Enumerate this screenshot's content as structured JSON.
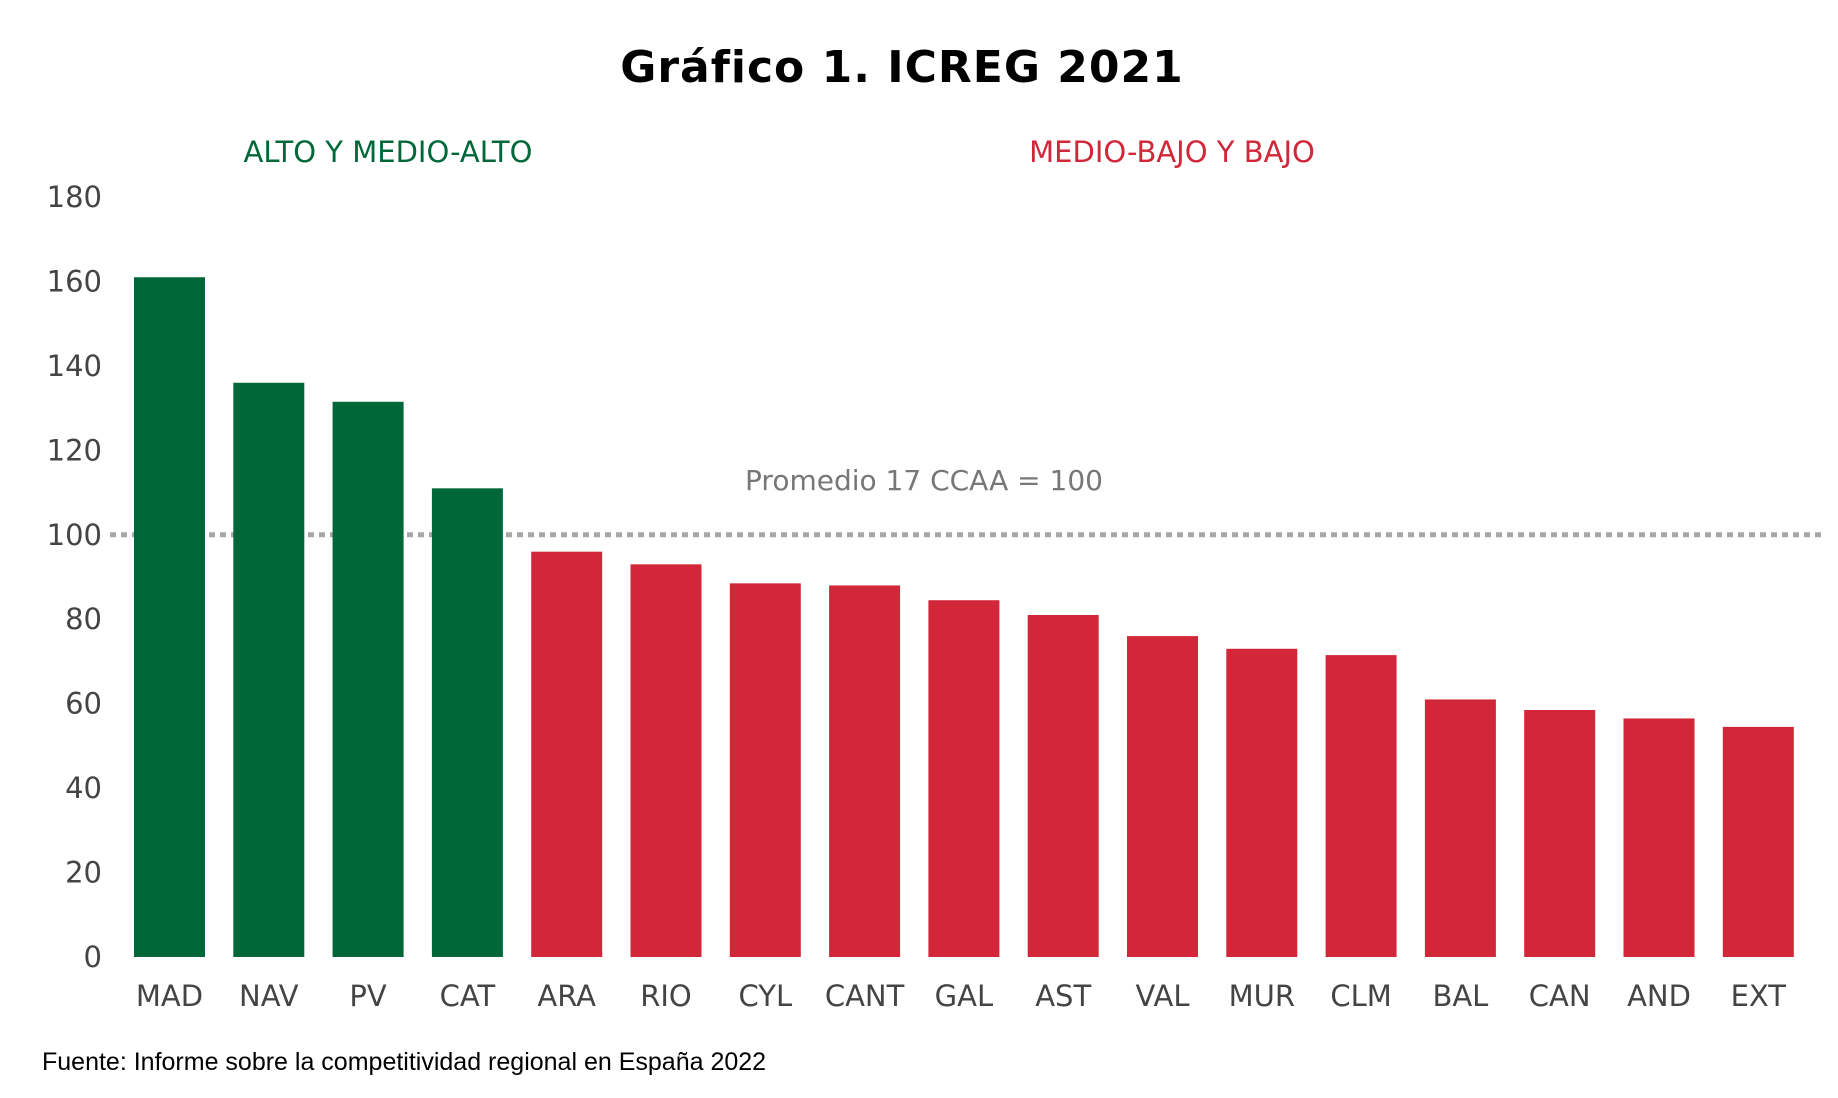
{
  "chart_data": {
    "type": "bar",
    "title": "Gráfico 1. ICREG 2021",
    "categories": [
      "MAD",
      "NAV",
      "PV",
      "CAT",
      "ARA",
      "RIO",
      "CYL",
      "CANT",
      "GAL",
      "AST",
      "VAL",
      "MUR",
      "CLM",
      "BAL",
      "CAN",
      "AND",
      "EXT"
    ],
    "values": [
      161,
      136,
      131.5,
      111,
      96,
      93,
      88.5,
      88,
      84.5,
      81,
      76,
      73,
      71.5,
      61,
      58.5,
      56.5,
      54.5
    ],
    "groups": [
      {
        "label": "ALTO Y MEDIO-ALTO",
        "color": "#006838",
        "categories": [
          "MAD",
          "NAV",
          "PV",
          "CAT"
        ]
      },
      {
        "label": "MEDIO-BAJO Y BAJO",
        "color": "#d12738",
        "categories": [
          "ARA",
          "RIO",
          "CYL",
          "CANT",
          "GAL",
          "AST",
          "VAL",
          "MUR",
          "CLM",
          "BAL",
          "CAN",
          "AND",
          "EXT"
        ]
      }
    ],
    "ylim": [
      0,
      180
    ],
    "yticks": [
      0,
      20,
      40,
      60,
      80,
      100,
      120,
      140,
      160,
      180
    ],
    "reference_line": {
      "value": 100,
      "label": "Promedio 17 CCAA = 100",
      "color": "#a6a6a6"
    },
    "grid": false,
    "source": "Fuente: Informe sobre la competitividad regional en España 2022"
  }
}
